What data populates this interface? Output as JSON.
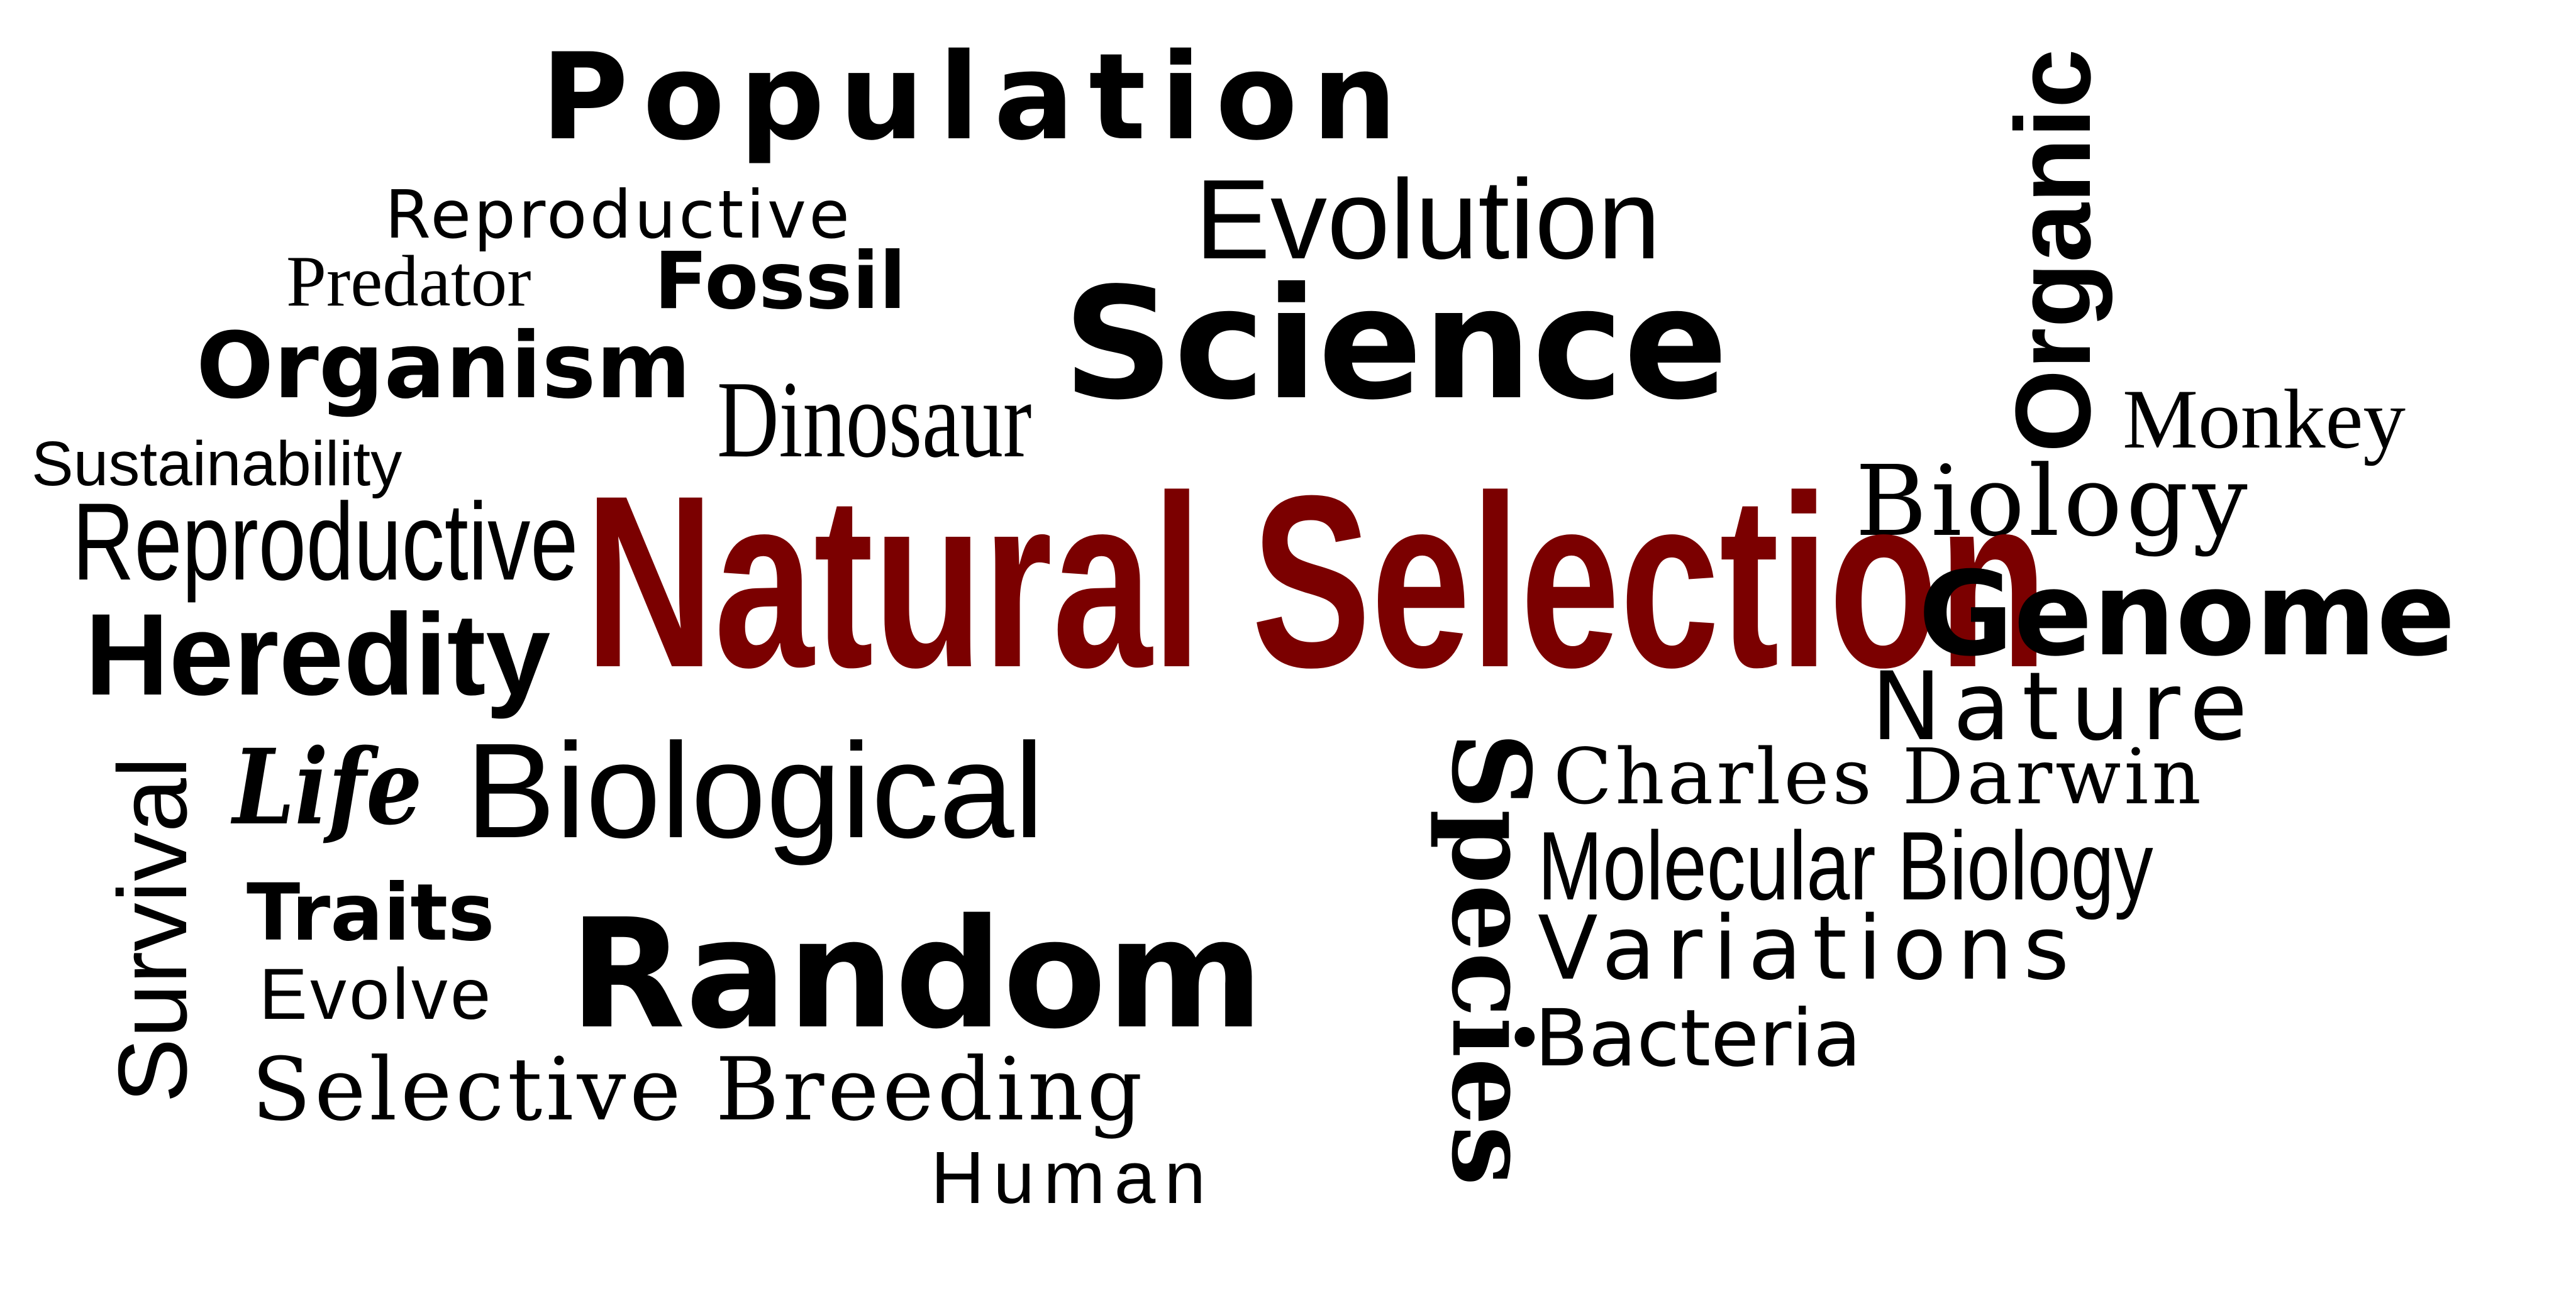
{
  "colors": {
    "background": "#ffffff",
    "text": "#000000",
    "accent": "#7b0000"
  },
  "words": {
    "population": "Population",
    "reproductive_top": "Reproductive",
    "evolution": "Evolution",
    "organic": "Organic",
    "predator": "Predator",
    "fossil": "Fossil",
    "science": "Science",
    "organism": "Organism",
    "dinosaur": "Dinosaur",
    "monkey": "Monkey",
    "sustainability": "Sustainability",
    "biology": "Biology",
    "reproductive_left": "Reproductive",
    "natural_selection": "Natural Selection",
    "genome": "Genome",
    "heredity": "Heredity",
    "nature": "Nature",
    "survival": "Survival",
    "life": "Life",
    "biological": "Biological",
    "species": "Species",
    "charles_darwin": "Charles Darwin",
    "molecular_biology": "Molecular Biology",
    "traits": "Traits",
    "random": "Random",
    "variations": "Variations",
    "evolve": "Evolve",
    "bacteria": "Bacteria",
    "selective_breeding": "Selective Breeding",
    "human": "Human"
  }
}
